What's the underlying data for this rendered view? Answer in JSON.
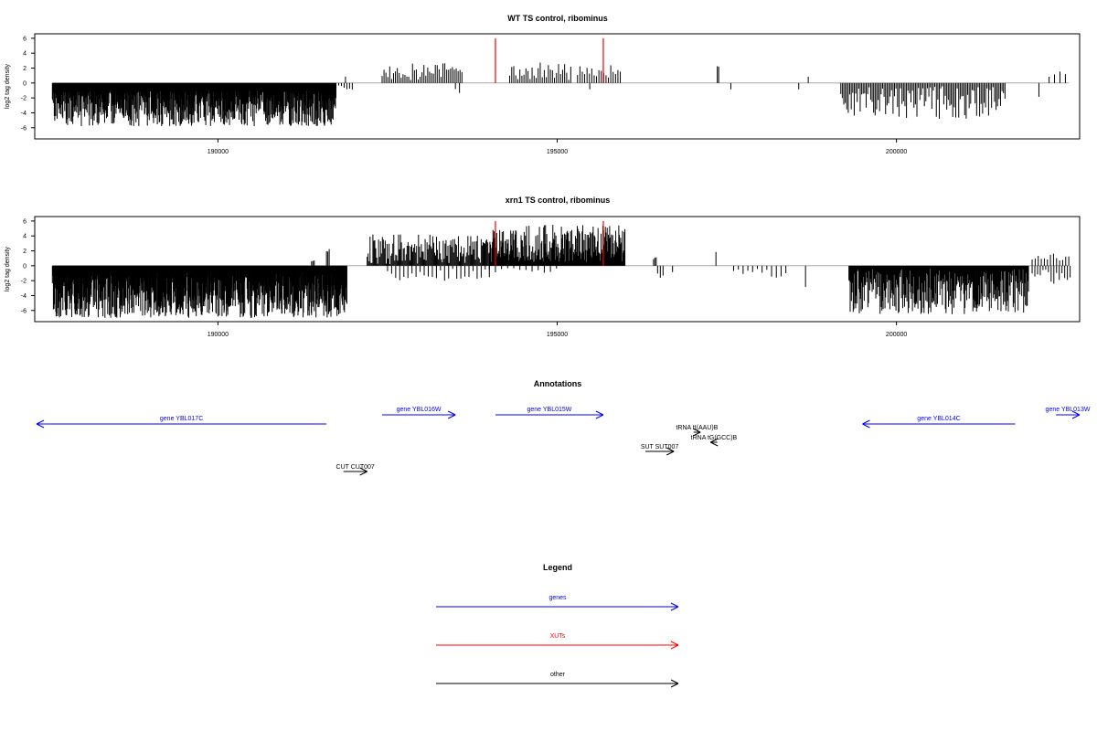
{
  "colors": {
    "genes": "#0000ff",
    "XUTs": "#ff0000",
    "other": "#000000",
    "baseline": "#999999"
  },
  "chart_data": [
    {
      "type": "bar",
      "title": "WT TS control, ribominus",
      "ylabel": "log2 tag density",
      "xlim": [
        187300,
        202700
      ],
      "ylim": [
        -7.5,
        6.6
      ],
      "yticks": [
        -6,
        -4,
        -2,
        0,
        2,
        4,
        6
      ],
      "xticks": [
        190000,
        195000,
        200000
      ],
      "xticklabels": [
        "190000",
        "195000",
        "200000"
      ],
      "grid": false,
      "segments": [
        {
          "x": [
            187560,
            191740
          ],
          "sign": -1,
          "min": 1.0,
          "max": 5.8,
          "step": 7,
          "seed": 11
        },
        {
          "x": [
            191700,
            191980
          ],
          "sign": -1,
          "min": 0.3,
          "max": 1.2,
          "step": 40,
          "seed": 12
        },
        {
          "x": [
            191880,
            191900
          ],
          "sign": 1,
          "min": 0.8,
          "max": 1.1,
          "step": 30,
          "seed": 13
        },
        {
          "x": [
            192420,
            193600
          ],
          "sign": 1,
          "min": 0.3,
          "max": 3.0,
          "step": 28,
          "seed": 14
        },
        {
          "x": [
            193500,
            193600
          ],
          "sign": -1,
          "min": 0.5,
          "max": 1.8,
          "step": 60,
          "seed": 15
        },
        {
          "x": [
            194300,
            195200
          ],
          "sign": 1,
          "min": 0.4,
          "max": 2.8,
          "step": 30,
          "seed": 16
        },
        {
          "x": [
            195300,
            195930
          ],
          "sign": 1,
          "min": 0.6,
          "max": 2.6,
          "step": 35,
          "seed": 17
        },
        {
          "x": [
            195480,
            195500
          ],
          "sign": -1,
          "min": 0.8,
          "max": 1.0,
          "step": 30,
          "seed": 18
        },
        {
          "x": [
            197360,
            197380
          ],
          "sign": 1,
          "min": 2.2,
          "max": 2.4,
          "step": 20,
          "seed": 19
        },
        {
          "x": [
            197560,
            197580
          ],
          "sign": -1,
          "min": 0.8,
          "max": 1.0,
          "step": 30,
          "seed": 20
        },
        {
          "x": [
            198560,
            198580
          ],
          "sign": -1,
          "min": 0.8,
          "max": 1.0,
          "step": 30,
          "seed": 21
        },
        {
          "x": [
            198700,
            198720
          ],
          "sign": 1,
          "min": 0.8,
          "max": 1.0,
          "step": 30,
          "seed": 22
        },
        {
          "x": [
            199180,
            201600
          ],
          "sign": -1,
          "min": 0.4,
          "max": 4.8,
          "step": 22,
          "seed": 23
        },
        {
          "x": [
            202100,
            202120
          ],
          "sign": -1,
          "min": 1.8,
          "max": 2.0,
          "step": 30,
          "seed": 24
        },
        {
          "x": [
            202250,
            202560
          ],
          "sign": 1,
          "min": 0.6,
          "max": 1.6,
          "step": 80,
          "seed": 25
        }
      ],
      "highlights": [
        {
          "x": 194090,
          "y": 6.0
        },
        {
          "x": 195680,
          "y": 6.0
        }
      ]
    },
    {
      "type": "bar",
      "title": "xrn1 TS control, ribominus",
      "ylabel": "log2 tag density",
      "xlim": [
        187300,
        202700
      ],
      "ylim": [
        -7.5,
        6.6
      ],
      "yticks": [
        -6,
        -4,
        -2,
        0,
        2,
        4,
        6
      ],
      "xticks": [
        190000,
        195000,
        200000
      ],
      "xticklabels": [
        "190000",
        "195000",
        "200000"
      ],
      "grid": false,
      "segments": [
        {
          "x": [
            187560,
            191900
          ],
          "sign": -1,
          "min": 0.8,
          "max": 7.0,
          "step": 5,
          "seed": 31
        },
        {
          "x": [
            191600,
            191640
          ],
          "sign": 1,
          "min": 1.8,
          "max": 2.4,
          "step": 20,
          "seed": 32
        },
        {
          "x": [
            191380,
            191420
          ],
          "sign": 1,
          "min": 0.5,
          "max": 1.0,
          "step": 20,
          "seed": 33
        },
        {
          "x": [
            192200,
            194000
          ],
          "sign": 1,
          "min": 0.2,
          "max": 4.2,
          "step": 14,
          "seed": 34
        },
        {
          "x": [
            192500,
            194000
          ],
          "sign": -1,
          "min": 0.3,
          "max": 2.0,
          "step": 60,
          "seed": 35
        },
        {
          "x": [
            194000,
            196000
          ],
          "sign": 1,
          "min": 0.5,
          "max": 5.5,
          "step": 9,
          "seed": 36
        },
        {
          "x": [
            194000,
            195000
          ],
          "sign": -1,
          "min": 0.3,
          "max": 1.2,
          "step": 90,
          "seed": 37
        },
        {
          "x": [
            196420,
            196460
          ],
          "sign": 1,
          "min": 0.8,
          "max": 1.2,
          "step": 20,
          "seed": 38
        },
        {
          "x": [
            196480,
            196560
          ],
          "sign": -1,
          "min": 0.8,
          "max": 1.8,
          "step": 40,
          "seed": 39
        },
        {
          "x": [
            196700,
            196720
          ],
          "sign": -1,
          "min": 0.8,
          "max": 1.0,
          "step": 30,
          "seed": 40
        },
        {
          "x": [
            197340,
            197360
          ],
          "sign": 1,
          "min": 1.8,
          "max": 2.0,
          "step": 30,
          "seed": 41
        },
        {
          "x": [
            197600,
            198400
          ],
          "sign": -1,
          "min": 0.4,
          "max": 1.6,
          "step": 70,
          "seed": 42
        },
        {
          "x": [
            198660,
            198680
          ],
          "sign": -1,
          "min": 2.8,
          "max": 3.0,
          "step": 30,
          "seed": 43
        },
        {
          "x": [
            199300,
            201950
          ],
          "sign": -1,
          "min": 0.4,
          "max": 6.5,
          "step": 9,
          "seed": 44
        },
        {
          "x": [
            202000,
            202560
          ],
          "sign": 1,
          "min": 0.5,
          "max": 1.8,
          "step": 45,
          "seed": 45
        },
        {
          "x": [
            202000,
            202560
          ],
          "sign": -1,
          "min": 0.5,
          "max": 2.6,
          "step": 40,
          "seed": 46
        }
      ],
      "highlights": [
        {
          "x": 194090,
          "y": 6.0
        },
        {
          "x": 195680,
          "y": 6.0
        }
      ]
    }
  ],
  "annotations": {
    "title": "Annotations",
    "items": [
      {
        "label": "gene YBL017C",
        "start": 191600,
        "end": 187300,
        "kind": "genes"
      },
      {
        "label": "gene YBL016W",
        "start": 192420,
        "end": 193500,
        "kind": "genes"
      },
      {
        "label": "gene YBL015W",
        "start": 194090,
        "end": 195680,
        "kind": "genes"
      },
      {
        "label": "gene YBL014C",
        "start": 201750,
        "end": 199500,
        "kind": "genes"
      },
      {
        "label": "gene YBL013W",
        "start": 202350,
        "end": 202700,
        "kind": "genes"
      },
      {
        "label": "tRNA tI(AAU)B",
        "start": 197010,
        "end": 197110,
        "kind": "other"
      },
      {
        "label": "tRNA tG(GCC)B",
        "start": 197360,
        "end": 197260,
        "kind": "other"
      },
      {
        "label": "SUT SUT007",
        "start": 196300,
        "end": 196720,
        "kind": "other"
      },
      {
        "label": "CUT CUT007",
        "start": 191850,
        "end": 192200,
        "kind": "other"
      }
    ]
  },
  "legend": {
    "title": "Legend",
    "items": [
      {
        "label": "genes",
        "kind": "genes"
      },
      {
        "label": "XUTs",
        "kind": "XUTs"
      },
      {
        "label": "other",
        "kind": "other"
      }
    ]
  }
}
